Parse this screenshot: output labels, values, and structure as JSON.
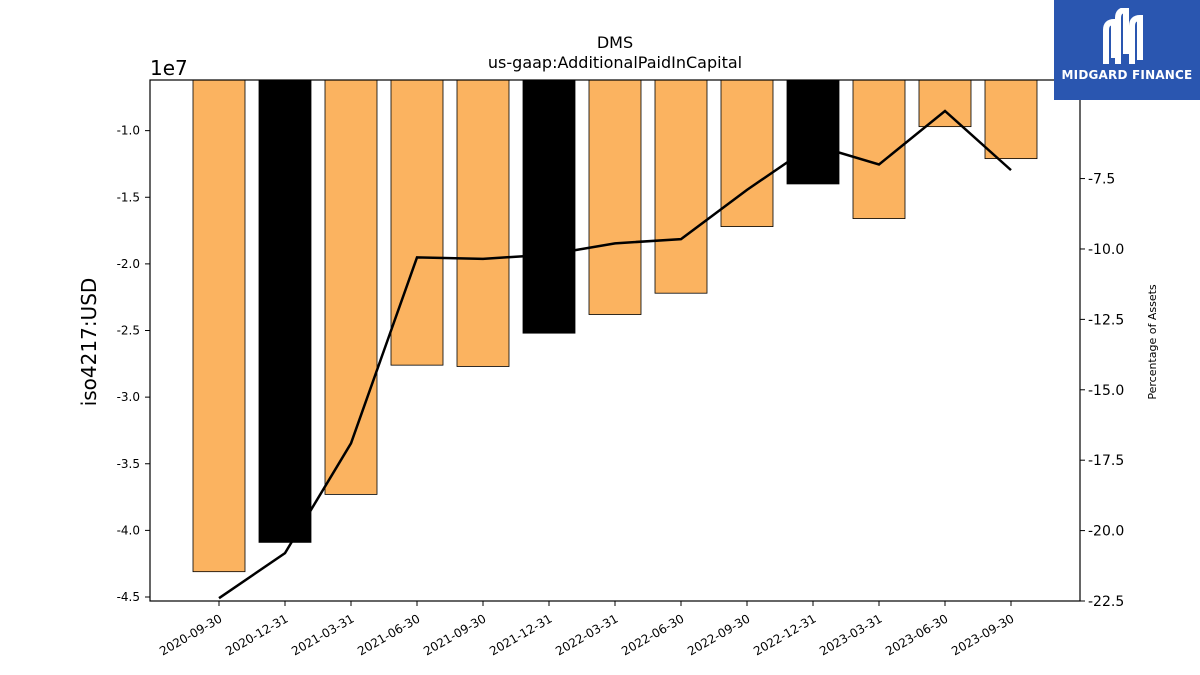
{
  "chart_data": {
    "type": "bar+line",
    "title": "DMS",
    "subtitle": "us-gaap:AdditionalPaidInCapital",
    "ylabel": "iso4217:USD",
    "y2label": "Percentage of Assets",
    "y_offset_label": "1e7",
    "categories": [
      "2020-09-30",
      "2020-12-31",
      "2021-03-31",
      "2021-06-30",
      "2021-09-30",
      "2021-12-31",
      "2022-03-31",
      "2022-06-30",
      "2022-09-30",
      "2022-12-31",
      "2023-03-31",
      "2023-06-30",
      "2023-09-30"
    ],
    "series": [
      {
        "kind": "bar",
        "axis": "left",
        "values": [
          -4.31,
          -4.09,
          -3.73,
          -2.76,
          -2.77,
          -2.52,
          -2.38,
          -2.22,
          -1.72,
          -1.4,
          -1.66,
          -0.97,
          -1.21
        ],
        "highlight": [
          false,
          true,
          false,
          false,
          false,
          true,
          false,
          false,
          false,
          true,
          false,
          false,
          false
        ]
      },
      {
        "kind": "line",
        "axis": "right",
        "values": [
          -22.4,
          -20.8,
          -16.9,
          -10.3,
          -10.35,
          -10.2,
          -9.8,
          -9.65,
          -7.9,
          -6.3,
          -7.0,
          -5.1,
          -7.2
        ]
      }
    ],
    "ylim": [
      -4.53,
      -0.62
    ],
    "y2lim": [
      -22.5,
      -4.0
    ],
    "yticks": [
      "-1.0",
      "-1.5",
      "-2.0",
      "-2.5",
      "-3.0",
      "-3.5",
      "-4.0",
      "-4.5"
    ],
    "ytick_values": [
      -1.0,
      -1.5,
      -2.0,
      -2.5,
      -3.0,
      -3.5,
      -4.0,
      -4.5
    ],
    "y2ticks": [
      "-7.5",
      "-10.0",
      "-12.5",
      "-15.0",
      "-17.5",
      "-20.0",
      "-22.5"
    ],
    "y2tick_values": [
      -7.5,
      -10.0,
      -12.5,
      -15.0,
      -17.5,
      -20.0,
      -22.5
    ],
    "grid": false,
    "colors": {
      "bar": "#fbb360",
      "highlight": "#000000",
      "line": "#000000"
    }
  },
  "logo": {
    "text": "MIDGARD FINANCE",
    "background": "#2a56b0"
  }
}
